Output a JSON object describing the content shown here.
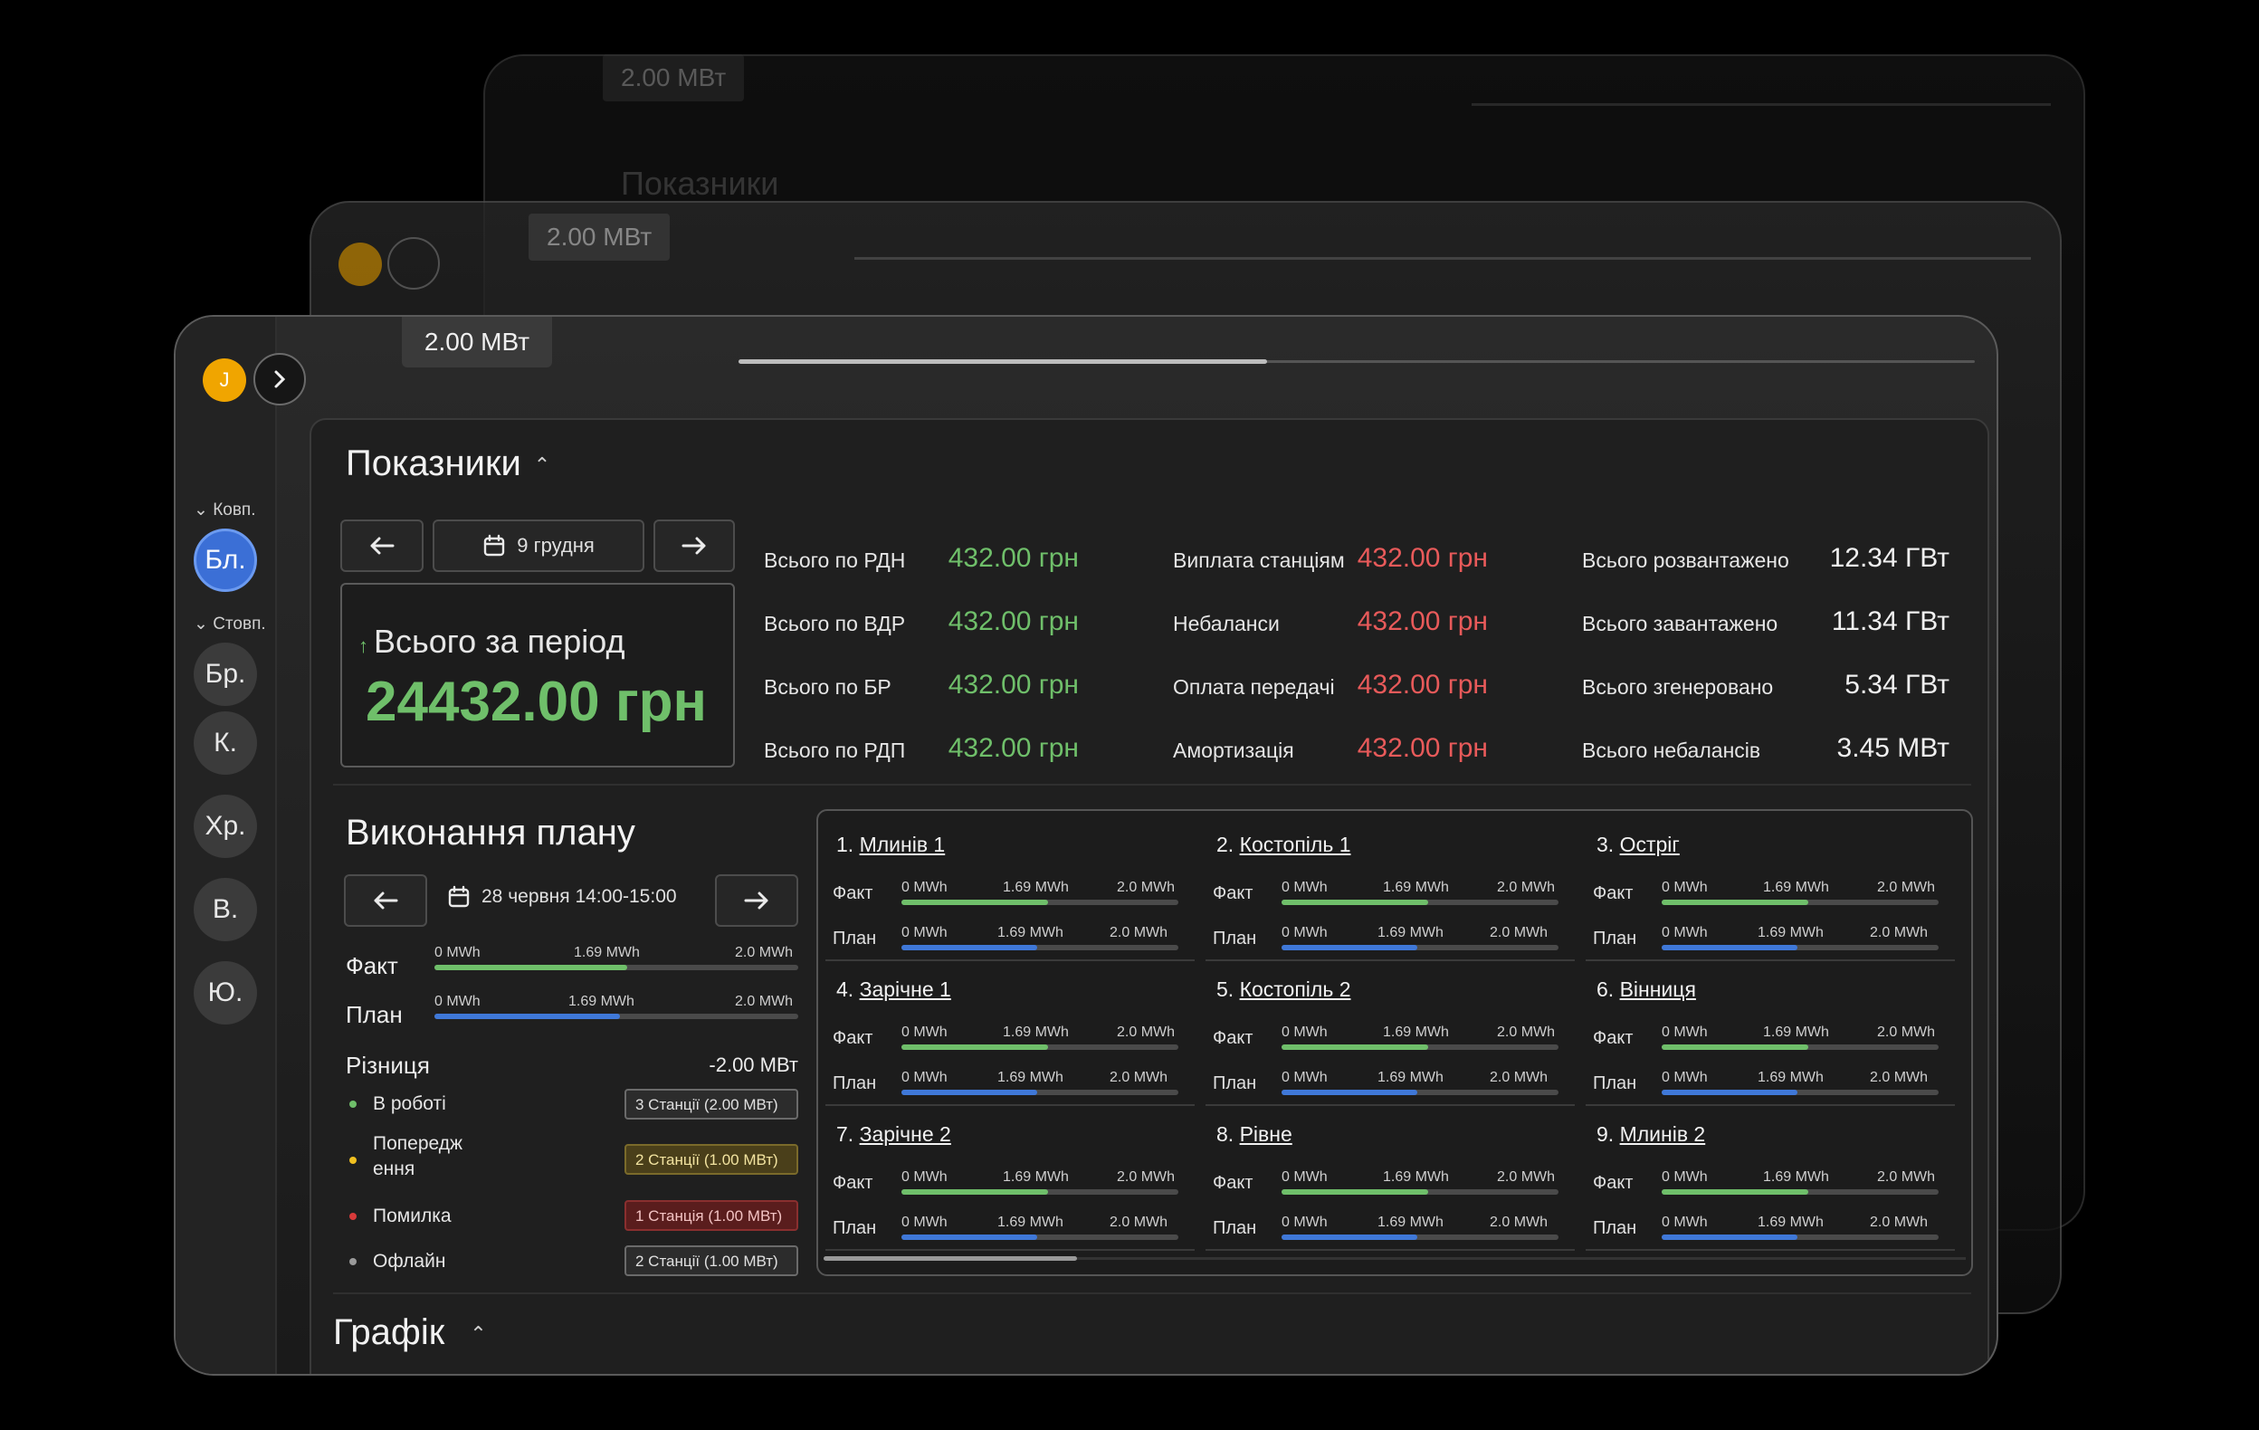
{
  "user": {
    "initial": "J"
  },
  "top": {
    "power_chip": "2.00 МВт"
  },
  "sidebar": {
    "groups": [
      {
        "label": "Ковп.",
        "items": [
          "Бл."
        ]
      },
      {
        "label": "Стовп.",
        "items": [
          "Бр.",
          "К.",
          "Хр.",
          "В.",
          "Ю."
        ]
      }
    ]
  },
  "indicators": {
    "title": "Показники",
    "date": "9 грудня",
    "total_label": "Всього за період",
    "total_value": "24432.00 грн",
    "col1": [
      {
        "label": "Всього по РДН",
        "value": "432.00 грн"
      },
      {
        "label": "Всього по ВДР",
        "value": "432.00 грн"
      },
      {
        "label": "Всього по БР",
        "value": "432.00 грн"
      },
      {
        "label": "Всього по РДП",
        "value": "432.00 грн"
      }
    ],
    "col2": [
      {
        "label": "Виплата станціям",
        "value": "432.00 грн"
      },
      {
        "label": "Небаланси",
        "value": "432.00 грн"
      },
      {
        "label": "Оплата передачі",
        "value": "432.00 грн"
      },
      {
        "label": "Амортизація",
        "value": "432.00 грн"
      }
    ],
    "col3": [
      {
        "label": "Всього розвантажено",
        "value": "12.34 ГВт"
      },
      {
        "label": "Всього завантажено",
        "value": "11.34 ГВт"
      },
      {
        "label": "Всього згенеровано",
        "value": "5.34 ГВт"
      },
      {
        "label": "Всього небалансів",
        "value": "3.45 МВт"
      }
    ]
  },
  "plan": {
    "title": "Виконання плану",
    "date": "28 червня 14:00-15:00",
    "fact_label": "Факт",
    "plan_label": "План",
    "ticks": [
      "0 MWh",
      "1.69 MWh",
      "2.0 MWh"
    ],
    "fact_fraction": 0.53,
    "plan_fraction": 0.51,
    "diff_label": "Різниця",
    "diff_value": "-2.00 МВт",
    "statuses": [
      {
        "label": "В роботі",
        "badge": "3 Станції (2.00 МВт)",
        "color": "#6fbf6a"
      },
      {
        "label": "Попередж ення",
        "badge": "2 Станції (1.00 МВт)",
        "color": "#f0c020"
      },
      {
        "label": "Помилка",
        "badge": "1 Станція (1.00 МВт)",
        "color": "#d83a3a"
      },
      {
        "label": "Офлайн",
        "badge": "2 Станції (1.00 МВт)",
        "color": "#9a9a9a"
      }
    ]
  },
  "stations": [
    {
      "num": "1.",
      "name": "Млинів 1"
    },
    {
      "num": "4.",
      "name": "Зарічне 1"
    },
    {
      "num": "7.",
      "name": "Зарічне 2"
    },
    {
      "num": "2.",
      "name": "Костопіль 1"
    },
    {
      "num": "5.",
      "name": "Костопіль 2"
    },
    {
      "num": "8.",
      "name": "Рівне"
    },
    {
      "num": "3.",
      "name": "Остріг"
    },
    {
      "num": "6.",
      "name": "Вінниця"
    },
    {
      "num": "9.",
      "name": "Млинів 2"
    }
  ],
  "station_rows": {
    "fact_label": "Факт",
    "plan_label": "План",
    "ticks": [
      "0 MWh",
      "1.69 MWh",
      "2.0 MWh"
    ],
    "fact_fraction": 0.53,
    "plan_fraction": 0.49
  },
  "chart_section": {
    "title": "Графік"
  },
  "colors": {
    "positive": "#6fbf6a",
    "negative": "#e85a5a",
    "fact_bar": "#6fbf6a",
    "plan_bar": "#3f78d8",
    "accent": "#3b6fd6"
  }
}
